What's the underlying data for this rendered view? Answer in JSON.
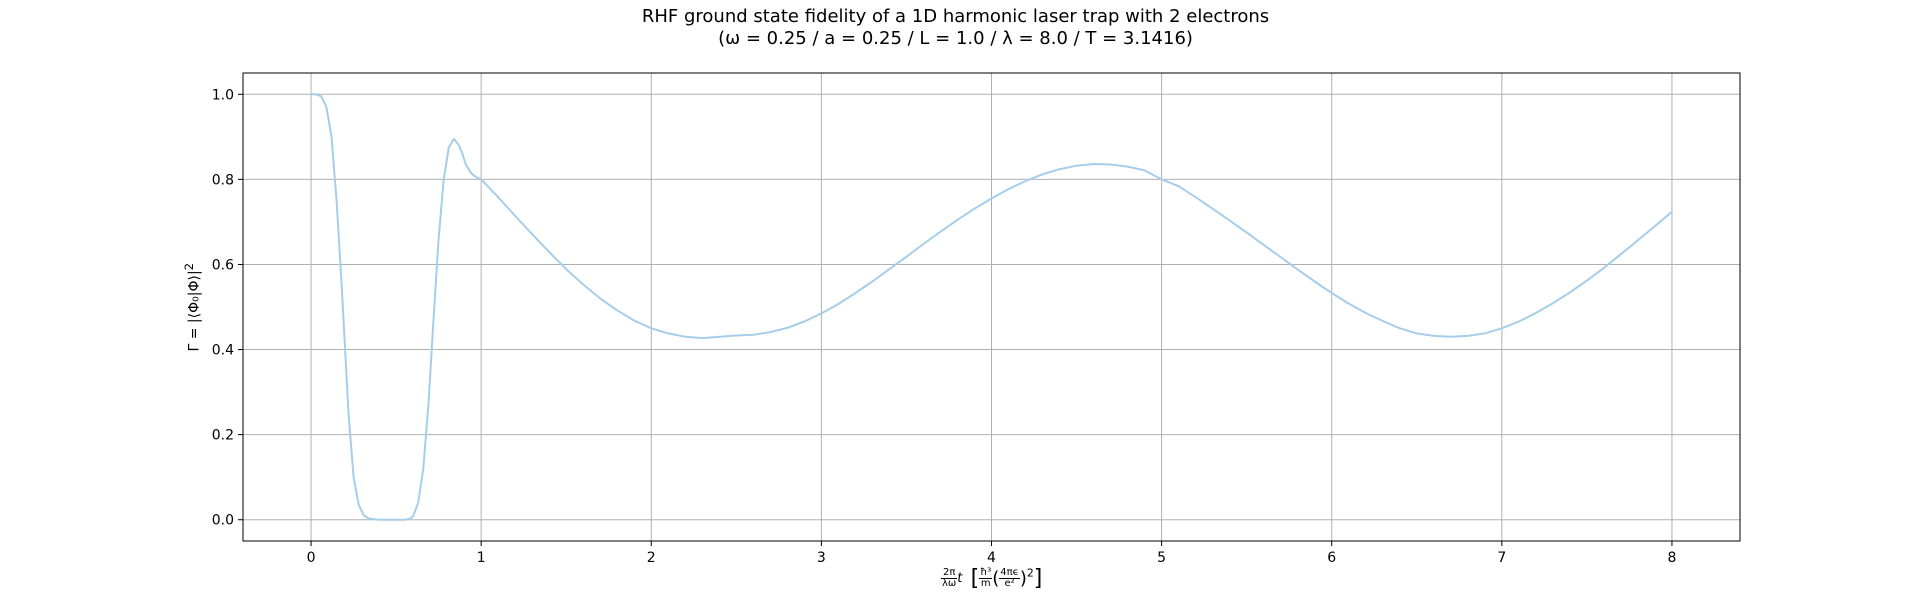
{
  "chart_data": {
    "type": "line",
    "title": "RHF ground state fidelity of a 1D harmonic laser trap with 2 electrons",
    "subtitle": "(ω = 0.25 / a = 0.25 / L = 1.0 / λ = 8.0 / T = 3.1416)",
    "xlabel": {
      "prefix_num": "2π",
      "prefix_den": "λω",
      "var": "t",
      "unit_num": "ħ³",
      "unit_den": "m",
      "unit_inner_num": "4πϵ",
      "unit_inner_den": "e²",
      "exponent": "2"
    },
    "ylabel": {
      "text": "Γ = |⟨Φ₀|Φ⟩|",
      "exponent": "2"
    },
    "xlim": [
      -0.4,
      8.4
    ],
    "ylim": [
      -0.05,
      1.05
    ],
    "xticks": [
      0,
      1,
      2,
      3,
      4,
      5,
      6,
      7,
      8
    ],
    "xtick_labels": [
      "0",
      "1",
      "2",
      "3",
      "4",
      "5",
      "6",
      "7",
      "8"
    ],
    "yticks": [
      0.0,
      0.2,
      0.4,
      0.6,
      0.8,
      1.0
    ],
    "ytick_labels": [
      "0.0",
      "0.2",
      "0.4",
      "0.6",
      "0.8",
      "1.0"
    ],
    "grid": true,
    "series": [
      {
        "color": "#a6cde9",
        "x": [
          0,
          0.03,
          0.06,
          0.09,
          0.12,
          0.15,
          0.18,
          0.2,
          0.22,
          0.25,
          0.28,
          0.31,
          0.34,
          0.37,
          0.4,
          0.45,
          0.5,
          0.55,
          0.58,
          0.6,
          0.63,
          0.66,
          0.69,
          0.72,
          0.75,
          0.78,
          0.81,
          0.84,
          0.87,
          0.89,
          0.91,
          0.94,
          0.97,
          1.0,
          1.1,
          1.2,
          1.3,
          1.4,
          1.5,
          1.6,
          1.7,
          1.8,
          1.9,
          2.0,
          2.1,
          2.2,
          2.3,
          2.4,
          2.5,
          2.6,
          2.7,
          2.8,
          2.9,
          3.0,
          3.1,
          3.2,
          3.3,
          3.4,
          3.5,
          3.6,
          3.7,
          3.8,
          3.9,
          4.0,
          4.1,
          4.2,
          4.3,
          4.4,
          4.5,
          4.6,
          4.7,
          4.8,
          4.9,
          5.0,
          5.1,
          5.2,
          5.3,
          5.4,
          5.5,
          5.6,
          5.7,
          5.8,
          5.9,
          6.0,
          6.1,
          6.2,
          6.3,
          6.4,
          6.5,
          6.6,
          6.7,
          6.8,
          6.9,
          7.0,
          7.1,
          7.2,
          7.3,
          7.4,
          7.5,
          7.6,
          7.7,
          7.8,
          7.9,
          8.0
        ],
        "y": [
          1.0,
          1.0,
          0.995,
          0.97,
          0.9,
          0.75,
          0.55,
          0.4,
          0.25,
          0.1,
          0.035,
          0.01,
          0.003,
          0.001,
          0.0,
          0.0,
          0.0,
          0.0,
          0.002,
          0.008,
          0.04,
          0.12,
          0.27,
          0.47,
          0.66,
          0.8,
          0.875,
          0.895,
          0.88,
          0.86,
          0.835,
          0.815,
          0.805,
          0.8,
          0.758,
          0.714,
          0.671,
          0.629,
          0.589,
          0.553,
          0.52,
          0.492,
          0.468,
          0.45,
          0.438,
          0.43,
          0.427,
          0.43,
          0.433,
          0.435,
          0.441,
          0.451,
          0.466,
          0.485,
          0.507,
          0.533,
          0.56,
          0.589,
          0.618,
          0.648,
          0.677,
          0.705,
          0.731,
          0.755,
          0.777,
          0.796,
          0.812,
          0.824,
          0.832,
          0.836,
          0.835,
          0.83,
          0.821,
          0.8,
          0.784,
          0.758,
          0.731,
          0.703,
          0.675,
          0.646,
          0.617,
          0.588,
          0.56,
          0.533,
          0.508,
          0.486,
          0.467,
          0.45,
          0.438,
          0.432,
          0.43,
          0.432,
          0.438,
          0.45,
          0.466,
          0.486,
          0.509,
          0.534,
          0.562,
          0.592,
          0.624,
          0.657,
          0.69,
          0.724
        ]
      }
    ]
  }
}
